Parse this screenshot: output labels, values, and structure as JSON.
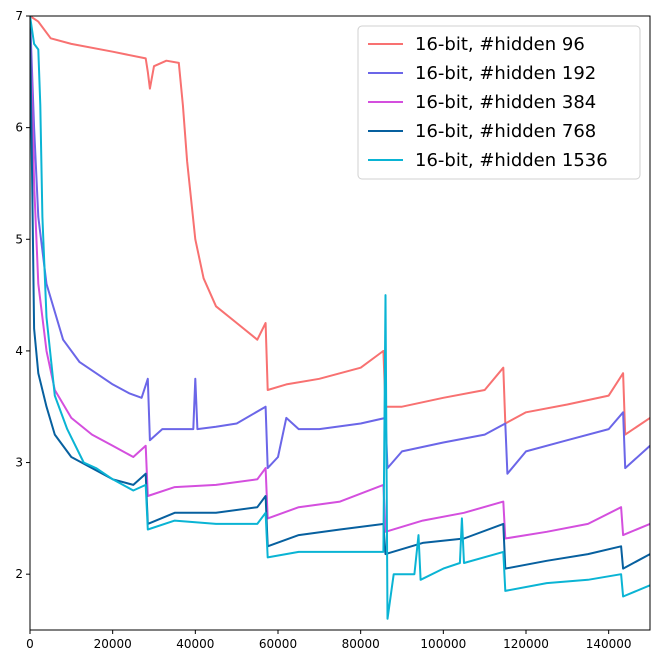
{
  "chart_data": {
    "type": "line",
    "title": "",
    "xlabel": "",
    "ylabel": "",
    "xlim": [
      0,
      150000
    ],
    "ylim": [
      1.5,
      7
    ],
    "x_ticks": [
      0,
      20000,
      40000,
      60000,
      80000,
      100000,
      120000,
      140000
    ],
    "x_tick_labels": [
      "0",
      "20000",
      "40000",
      "60000",
      "80000",
      "100000",
      "120000",
      "140000"
    ],
    "y_ticks": [
      2,
      3,
      4,
      5,
      6,
      7
    ],
    "y_tick_labels": [
      "2",
      "3",
      "4",
      "5",
      "6",
      "7"
    ],
    "grid": false,
    "legend_position": "top-right",
    "series": [
      {
        "name": "16-bit, #hidden 96",
        "color": "#f87171",
        "points": [
          [
            0,
            7.0
          ],
          [
            2000,
            6.95
          ],
          [
            5000,
            6.8
          ],
          [
            10000,
            6.75
          ],
          [
            20000,
            6.68
          ],
          [
            28000,
            6.62
          ],
          [
            28500,
            6.5
          ],
          [
            29000,
            6.35
          ],
          [
            30000,
            6.55
          ],
          [
            33000,
            6.6
          ],
          [
            36000,
            6.58
          ],
          [
            37000,
            6.2
          ],
          [
            38000,
            5.7
          ],
          [
            40000,
            5.0
          ],
          [
            42000,
            4.65
          ],
          [
            45000,
            4.4
          ],
          [
            50000,
            4.25
          ],
          [
            55000,
            4.1
          ],
          [
            57000,
            4.25
          ],
          [
            57500,
            3.65
          ],
          [
            62000,
            3.7
          ],
          [
            70000,
            3.75
          ],
          [
            80000,
            3.85
          ],
          [
            85500,
            4.0
          ],
          [
            86000,
            3.5
          ],
          [
            90000,
            3.5
          ],
          [
            100000,
            3.58
          ],
          [
            110000,
            3.65
          ],
          [
            114500,
            3.85
          ],
          [
            115000,
            3.35
          ],
          [
            120000,
            3.45
          ],
          [
            130000,
            3.52
          ],
          [
            140000,
            3.6
          ],
          [
            143500,
            3.8
          ],
          [
            144000,
            3.25
          ],
          [
            150000,
            3.4
          ]
        ]
      },
      {
        "name": "16-bit, #hidden 192",
        "color": "#6b66e8",
        "points": [
          [
            0,
            7.0
          ],
          [
            1000,
            6.0
          ],
          [
            2000,
            5.2
          ],
          [
            4000,
            4.6
          ],
          [
            8000,
            4.1
          ],
          [
            12000,
            3.9
          ],
          [
            16000,
            3.8
          ],
          [
            20000,
            3.7
          ],
          [
            24000,
            3.62
          ],
          [
            27000,
            3.58
          ],
          [
            28500,
            3.75
          ],
          [
            29000,
            3.2
          ],
          [
            32000,
            3.3
          ],
          [
            39500,
            3.3
          ],
          [
            40000,
            3.75
          ],
          [
            40500,
            3.3
          ],
          [
            45000,
            3.32
          ],
          [
            50000,
            3.35
          ],
          [
            57000,
            3.5
          ],
          [
            57500,
            2.95
          ],
          [
            60000,
            3.05
          ],
          [
            62000,
            3.4
          ],
          [
            65000,
            3.3
          ],
          [
            70000,
            3.3
          ],
          [
            80000,
            3.35
          ],
          [
            86000,
            3.4
          ],
          [
            86500,
            2.95
          ],
          [
            90000,
            3.1
          ],
          [
            100000,
            3.18
          ],
          [
            110000,
            3.25
          ],
          [
            115000,
            3.35
          ],
          [
            115500,
            2.9
          ],
          [
            120000,
            3.1
          ],
          [
            130000,
            3.2
          ],
          [
            140000,
            3.3
          ],
          [
            143500,
            3.45
          ],
          [
            144000,
            2.95
          ],
          [
            150000,
            3.15
          ]
        ]
      },
      {
        "name": "16-bit, #hidden 384",
        "color": "#d44fde",
        "points": [
          [
            0,
            7.0
          ],
          [
            1000,
            5.5
          ],
          [
            2000,
            4.6
          ],
          [
            4000,
            4.0
          ],
          [
            6000,
            3.65
          ],
          [
            10000,
            3.4
          ],
          [
            15000,
            3.25
          ],
          [
            20000,
            3.15
          ],
          [
            25000,
            3.05
          ],
          [
            28000,
            3.15
          ],
          [
            28500,
            2.7
          ],
          [
            35000,
            2.78
          ],
          [
            45000,
            2.8
          ],
          [
            55000,
            2.85
          ],
          [
            57000,
            2.95
          ],
          [
            57500,
            2.5
          ],
          [
            65000,
            2.6
          ],
          [
            75000,
            2.65
          ],
          [
            85500,
            2.8
          ],
          [
            86000,
            2.38
          ],
          [
            95000,
            2.48
          ],
          [
            105000,
            2.55
          ],
          [
            114500,
            2.65
          ],
          [
            115000,
            2.32
          ],
          [
            125000,
            2.38
          ],
          [
            135000,
            2.45
          ],
          [
            143000,
            2.6
          ],
          [
            143500,
            2.35
          ],
          [
            150000,
            2.45
          ]
        ]
      },
      {
        "name": "16-bit, #hidden 768",
        "color": "#07609f",
        "points": [
          [
            0,
            7.0
          ],
          [
            1000,
            4.2
          ],
          [
            2000,
            3.8
          ],
          [
            4000,
            3.5
          ],
          [
            6000,
            3.25
          ],
          [
            10000,
            3.05
          ],
          [
            15000,
            2.95
          ],
          [
            20000,
            2.85
          ],
          [
            25000,
            2.8
          ],
          [
            28000,
            2.9
          ],
          [
            28500,
            2.45
          ],
          [
            35000,
            2.55
          ],
          [
            45000,
            2.55
          ],
          [
            55000,
            2.6
          ],
          [
            57000,
            2.7
          ],
          [
            57500,
            2.25
          ],
          [
            65000,
            2.35
          ],
          [
            75000,
            2.4
          ],
          [
            85500,
            2.45
          ],
          [
            86000,
            2.18
          ],
          [
            95000,
            2.28
          ],
          [
            105000,
            2.32
          ],
          [
            114500,
            2.45
          ],
          [
            115000,
            2.05
          ],
          [
            125000,
            2.12
          ],
          [
            135000,
            2.18
          ],
          [
            143000,
            2.25
          ],
          [
            143500,
            2.05
          ],
          [
            150000,
            2.18
          ]
        ]
      },
      {
        "name": "16-bit, #hidden 1536",
        "color": "#0ab4d4",
        "points": [
          [
            0,
            7.0
          ],
          [
            1000,
            6.75
          ],
          [
            2000,
            6.7
          ],
          [
            2500,
            6.2
          ],
          [
            3000,
            5.2
          ],
          [
            4000,
            4.3
          ],
          [
            6000,
            3.6
          ],
          [
            9000,
            3.3
          ],
          [
            13000,
            3.0
          ],
          [
            16000,
            2.95
          ],
          [
            20000,
            2.85
          ],
          [
            25000,
            2.75
          ],
          [
            28000,
            2.8
          ],
          [
            28500,
            2.4
          ],
          [
            35000,
            2.48
          ],
          [
            45000,
            2.45
          ],
          [
            55000,
            2.45
          ],
          [
            57000,
            2.55
          ],
          [
            57500,
            2.15
          ],
          [
            65000,
            2.2
          ],
          [
            75000,
            2.2
          ],
          [
            85500,
            2.2
          ],
          [
            86000,
            4.5
          ],
          [
            86500,
            1.6
          ],
          [
            88000,
            2.0
          ],
          [
            93000,
            2.0
          ],
          [
            94000,
            2.35
          ],
          [
            94500,
            1.95
          ],
          [
            100000,
            2.05
          ],
          [
            104000,
            2.1
          ],
          [
            104500,
            2.5
          ],
          [
            105000,
            2.1
          ],
          [
            114500,
            2.2
          ],
          [
            115000,
            1.85
          ],
          [
            125000,
            1.92
          ],
          [
            135000,
            1.95
          ],
          [
            143000,
            2.0
          ],
          [
            143500,
            1.8
          ],
          [
            150000,
            1.9
          ]
        ]
      }
    ]
  }
}
